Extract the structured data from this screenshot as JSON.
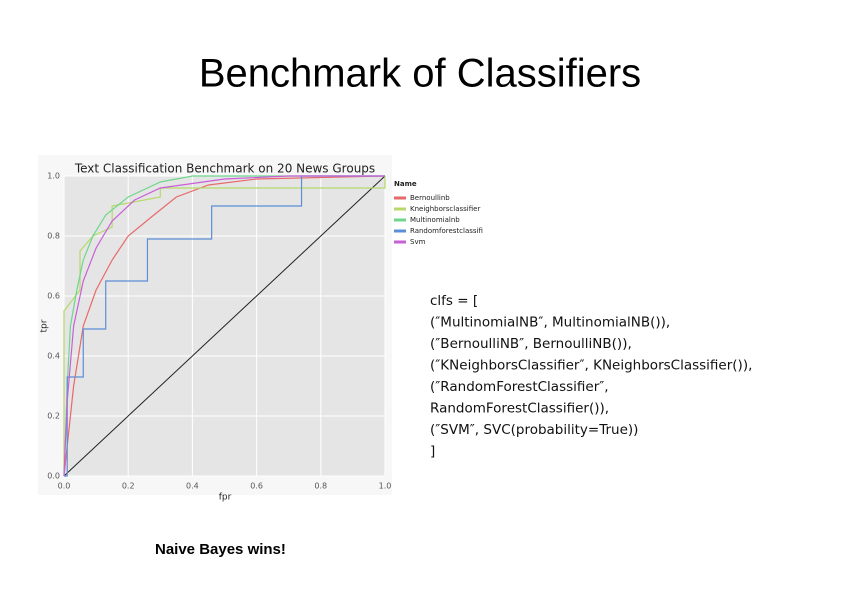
{
  "slide": {
    "title": "Benchmark of Classifiers",
    "code": [
      "clfs = [",
      "(″MultinomialNB″, MultinomialNB()),",
      "(″BernoulliNB″, BernoulliNB()),",
      "(″KNeighborsClassifier″, KNeighborsClassifier()),",
      "(″RandomForestClassifier″,",
      "RandomForestClassifier()),",
      "(″SVM″, SVC(probability=True))",
      "]"
    ],
    "caption": "Naive Bayes wins!"
  },
  "chart_data": {
    "type": "line",
    "title": "Text Classification Benchmark on 20 News Groups",
    "xlabel": "fpr",
    "ylabel": "tpr",
    "legend_title": "Name",
    "legend": "right",
    "grid": true,
    "xlim": [
      0,
      1
    ],
    "ylim": [
      0,
      1
    ],
    "xticks": [
      {
        "value": 0,
        "label": "0.0"
      },
      0.2,
      0.4,
      0.6,
      0.8,
      {
        "value": 1,
        "label": "1.0"
      }
    ],
    "yticks": [
      {
        "value": 0,
        "label": "0.0"
      },
      0.2,
      0.4,
      0.6,
      0.8,
      {
        "value": 1,
        "label": "1.0"
      }
    ],
    "series": [
      {
        "name": "Bernoullinb",
        "color": "#e8696b",
        "x": [
          0,
          0.01,
          0.03,
          0.06,
          0.1,
          0.15,
          0.2,
          0.28,
          0.35,
          0.45,
          0.6,
          1
        ],
        "values": [
          0,
          0.1,
          0.3,
          0.5,
          0.62,
          0.72,
          0.8,
          0.87,
          0.93,
          0.97,
          0.99,
          1
        ]
      },
      {
        "name": "Kneighborsclassifier",
        "color": "#b5d96a",
        "x": [
          0,
          0,
          0.05,
          0.05,
          0.09,
          0.15,
          0.15,
          0.3,
          0.3,
          1,
          1
        ],
        "values": [
          0,
          0.55,
          0.62,
          0.75,
          0.8,
          0.83,
          0.9,
          0.93,
          0.96,
          0.96,
          1
        ]
      },
      {
        "name": "Multinomialnb",
        "color": "#6fd68c",
        "x": [
          0,
          0.01,
          0.02,
          0.04,
          0.06,
          0.09,
          0.13,
          0.2,
          0.3,
          0.4,
          1
        ],
        "values": [
          0,
          0.3,
          0.5,
          0.62,
          0.72,
          0.8,
          0.87,
          0.93,
          0.98,
          1,
          1
        ]
      },
      {
        "name": "Randomforestclassifi",
        "color": "#5b8fd6",
        "x": [
          0,
          0.01,
          0.01,
          0.06,
          0.06,
          0.13,
          0.13,
          0.26,
          0.26,
          0.46,
          0.46,
          0.74,
          0.74,
          1
        ],
        "values": [
          0,
          0,
          0.33,
          0.33,
          0.49,
          0.49,
          0.65,
          0.65,
          0.79,
          0.79,
          0.9,
          0.9,
          1,
          1
        ]
      },
      {
        "name": "Svm",
        "color": "#c85fd8",
        "x": [
          0,
          0.01,
          0.03,
          0.06,
          0.1,
          0.15,
          0.22,
          0.3,
          0.5,
          0.7,
          1
        ],
        "values": [
          0,
          0.25,
          0.5,
          0.65,
          0.76,
          0.85,
          0.92,
          0.96,
          0.99,
          1,
          1
        ]
      }
    ]
  }
}
